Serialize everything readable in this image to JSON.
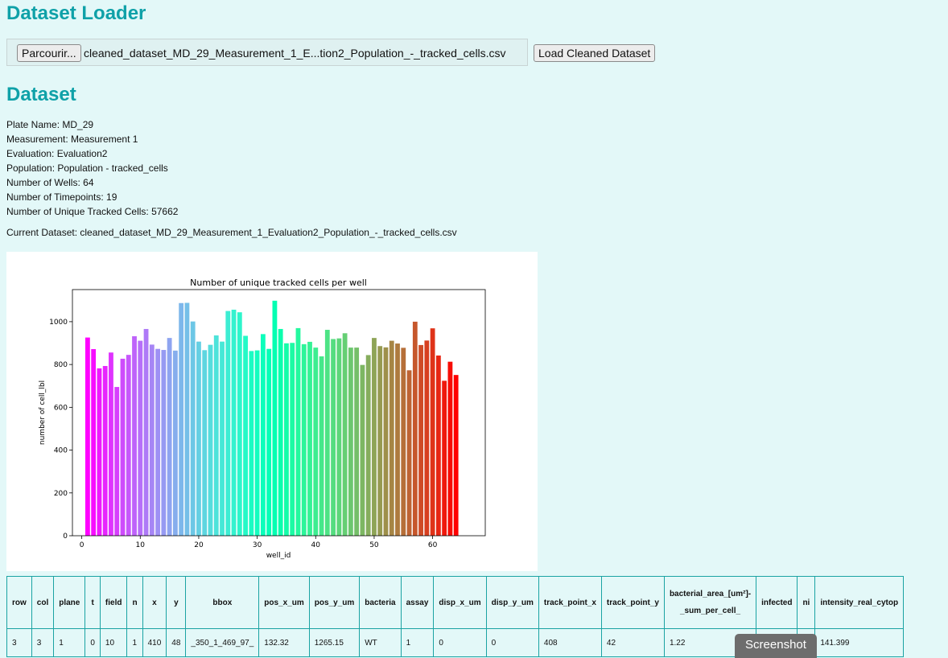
{
  "loader": {
    "title": "Dataset Loader",
    "browse_label": "Parcourir...",
    "file_name": "cleaned_dataset_MD_29_Measurement_1_E...tion2_Population_-_tracked_cells.csv",
    "load_label": "Load Cleaned Dataset"
  },
  "dataset": {
    "title": "Dataset",
    "info": [
      "Plate Name: MD_29",
      "Measurement: Measurement 1",
      "Evaluation: Evaluation2",
      "Population: Population - tracked_cells",
      "Number of Wells: 64",
      "Number of Timepoints: 19",
      "Number of Unique Tracked Cells: 57662"
    ],
    "current": "Current Dataset: cleaned_dataset_MD_29_Measurement_1_Evaluation2_Population_-_tracked_cells.csv"
  },
  "chart_data": {
    "type": "bar",
    "title": "Number of unique tracked cells per well",
    "xlabel": "well_id",
    "ylabel": "number of cell_lbl",
    "xlim": [
      -1.6,
      69
    ],
    "ylim": [
      0,
      1150
    ],
    "xticks": [
      0,
      10,
      20,
      30,
      40,
      50,
      60
    ],
    "yticks": [
      0,
      200,
      400,
      600,
      800,
      1000
    ],
    "colormap": "rainbow",
    "x": [
      1,
      2,
      3,
      4,
      5,
      6,
      7,
      8,
      9,
      10,
      11,
      12,
      13,
      14,
      15,
      16,
      17,
      18,
      19,
      20,
      21,
      22,
      23,
      24,
      25,
      26,
      27,
      28,
      29,
      30,
      31,
      32,
      33,
      34,
      35,
      36,
      37,
      38,
      39,
      40,
      41,
      42,
      43,
      44,
      45,
      46,
      47,
      48,
      49,
      50,
      51,
      52,
      53,
      54,
      55,
      56,
      57,
      58,
      59,
      60,
      61,
      62,
      63,
      64
    ],
    "values": [
      926,
      872,
      782,
      793,
      856,
      695,
      827,
      845,
      932,
      911,
      966,
      893,
      873,
      868,
      924,
      865,
      1087,
      1088,
      1001,
      907,
      867,
      892,
      936,
      907,
      1050,
      1056,
      1044,
      934,
      863,
      866,
      942,
      873,
      1098,
      966,
      899,
      901,
      970,
      895,
      906,
      879,
      838,
      962,
      919,
      922,
      946,
      879,
      879,
      798,
      844,
      924,
      886,
      880,
      911,
      898,
      878,
      773,
      1000,
      891,
      912,
      969,
      842,
      724,
      813,
      751
    ]
  },
  "table": {
    "headers": [
      "row",
      "col",
      "plane",
      "t",
      "field",
      "n",
      "x",
      "y",
      "bbox",
      "pos_x_um",
      "pos_y_um",
      "bacteria",
      "assay",
      "disp_x_um",
      "disp_y_um",
      "track_point_x",
      "track_point_y",
      "bacterial_area_[um²]-_sum_per_cell_",
      "infected",
      "ni",
      "intensity_real_cytop"
    ],
    "row": [
      "3",
      "3",
      "1",
      "0",
      "10",
      "1",
      "410",
      "48",
      "_350_1_469_97_",
      "132.32",
      "1265.15",
      "WT",
      "1",
      "0",
      "0",
      "408",
      "42",
      "1.22",
      "",
      "0",
      "141.399"
    ]
  },
  "toast": {
    "label": "Screenshot"
  }
}
